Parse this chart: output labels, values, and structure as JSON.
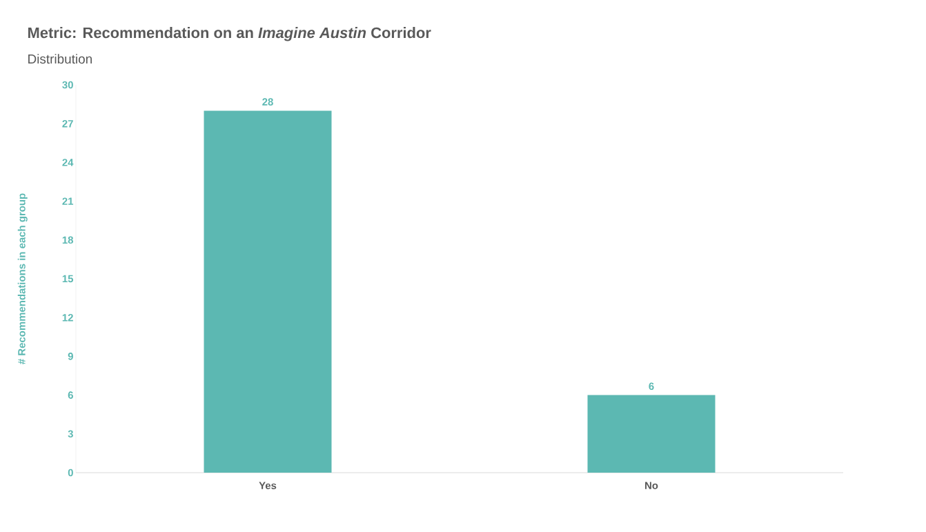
{
  "chart_data": {
    "type": "bar",
    "title": "Metric: Recommendation on an *Imagine Austin* Corridor",
    "subtitle": "Distribution",
    "ylabel": "# Recommendations in each group",
    "categories": [
      "Yes",
      "No"
    ],
    "values": [
      28,
      6
    ],
    "color": "#5cb8b2",
    "ylim": [
      0,
      30
    ],
    "yticks": [
      0,
      3,
      6,
      9,
      12,
      15,
      18,
      21,
      24,
      27,
      30
    ],
    "data_labels": true
  }
}
